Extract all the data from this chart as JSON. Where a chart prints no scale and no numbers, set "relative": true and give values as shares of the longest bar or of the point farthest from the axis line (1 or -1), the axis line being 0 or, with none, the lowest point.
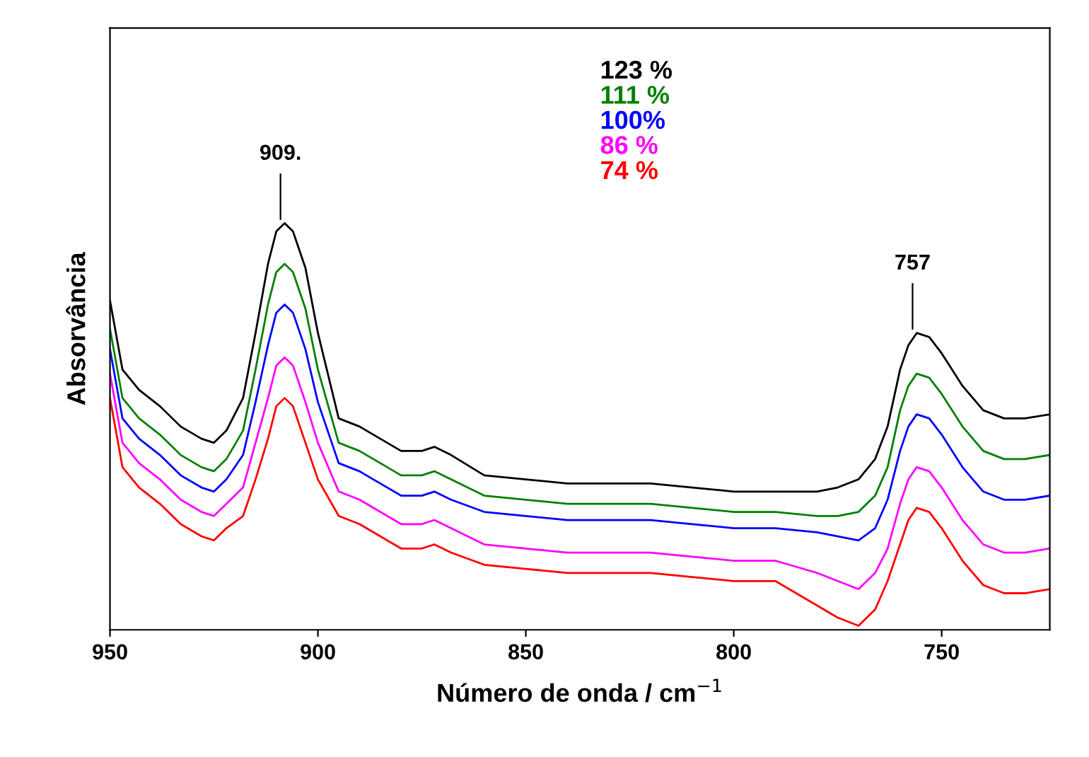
{
  "chart_data": {
    "type": "line",
    "relative": true,
    "xlabel": "Número de onda / cm$^{−1}$",
    "ylabel": "Absorvância",
    "x": [
      950,
      947,
      943,
      938,
      933,
      928,
      925,
      922,
      918,
      915,
      912,
      910,
      908,
      906,
      903,
      900,
      895,
      890,
      885,
      880,
      875,
      872,
      868,
      860,
      850,
      840,
      830,
      820,
      810,
      800,
      790,
      780,
      775,
      770,
      766,
      763,
      760,
      758,
      756,
      753,
      750,
      745,
      740,
      735,
      730,
      724
    ],
    "xlim": [
      950,
      724
    ],
    "xticks": [
      950,
      900,
      850,
      800,
      750
    ],
    "series": [
      {
        "name": "123 %",
        "color": "#000000",
        "values": [
          0.81,
          0.64,
          0.59,
          0.55,
          0.5,
          0.47,
          0.46,
          0.49,
          0.57,
          0.73,
          0.9,
          0.98,
          1.0,
          0.98,
          0.89,
          0.73,
          0.52,
          0.5,
          0.47,
          0.44,
          0.44,
          0.45,
          0.43,
          0.38,
          0.37,
          0.36,
          0.36,
          0.36,
          0.35,
          0.34,
          0.34,
          0.34,
          0.35,
          0.37,
          0.42,
          0.5,
          0.64,
          0.7,
          0.73,
          0.72,
          0.68,
          0.6,
          0.54,
          0.52,
          0.52,
          0.53
        ]
      },
      {
        "name": "111 %",
        "color": "#008000",
        "values": [
          0.74,
          0.57,
          0.52,
          0.48,
          0.43,
          0.4,
          0.39,
          0.42,
          0.49,
          0.64,
          0.8,
          0.88,
          0.9,
          0.88,
          0.79,
          0.64,
          0.46,
          0.44,
          0.41,
          0.38,
          0.38,
          0.39,
          0.37,
          0.33,
          0.32,
          0.31,
          0.31,
          0.31,
          0.3,
          0.29,
          0.29,
          0.28,
          0.28,
          0.29,
          0.33,
          0.4,
          0.54,
          0.6,
          0.63,
          0.62,
          0.58,
          0.5,
          0.44,
          0.42,
          0.42,
          0.43
        ]
      },
      {
        "name": "100%",
        "color": "#0000ff",
        "values": [
          0.69,
          0.52,
          0.47,
          0.43,
          0.38,
          0.35,
          0.34,
          0.37,
          0.43,
          0.56,
          0.7,
          0.78,
          0.8,
          0.78,
          0.69,
          0.56,
          0.41,
          0.39,
          0.36,
          0.33,
          0.33,
          0.34,
          0.32,
          0.29,
          0.28,
          0.27,
          0.27,
          0.27,
          0.26,
          0.25,
          0.25,
          0.24,
          0.23,
          0.22,
          0.25,
          0.32,
          0.44,
          0.5,
          0.53,
          0.52,
          0.48,
          0.4,
          0.34,
          0.32,
          0.32,
          0.33
        ]
      },
      {
        "name": "86 %",
        "color": "#ff00ff",
        "values": [
          0.63,
          0.46,
          0.41,
          0.37,
          0.32,
          0.29,
          0.28,
          0.31,
          0.35,
          0.46,
          0.57,
          0.65,
          0.67,
          0.65,
          0.56,
          0.46,
          0.34,
          0.32,
          0.29,
          0.26,
          0.26,
          0.27,
          0.25,
          0.21,
          0.2,
          0.19,
          0.19,
          0.19,
          0.18,
          0.17,
          0.17,
          0.14,
          0.12,
          0.1,
          0.14,
          0.2,
          0.31,
          0.37,
          0.4,
          0.39,
          0.35,
          0.27,
          0.21,
          0.19,
          0.19,
          0.2
        ]
      },
      {
        "name": "74 %",
        "color": "#ff0000",
        "values": [
          0.57,
          0.4,
          0.35,
          0.31,
          0.26,
          0.23,
          0.22,
          0.25,
          0.28,
          0.37,
          0.47,
          0.55,
          0.57,
          0.55,
          0.46,
          0.37,
          0.28,
          0.26,
          0.23,
          0.2,
          0.2,
          0.21,
          0.19,
          0.16,
          0.15,
          0.14,
          0.14,
          0.14,
          0.13,
          0.12,
          0.12,
          0.06,
          0.03,
          0.01,
          0.05,
          0.12,
          0.21,
          0.27,
          0.3,
          0.29,
          0.25,
          0.17,
          0.11,
          0.09,
          0.09,
          0.1
        ]
      }
    ],
    "annotations": [
      {
        "text": "909.",
        "x": 909,
        "y": 1.0
      },
      {
        "text": "757",
        "x": 757,
        "y": 0.73
      }
    ],
    "legend": "top",
    "grid": false
  }
}
